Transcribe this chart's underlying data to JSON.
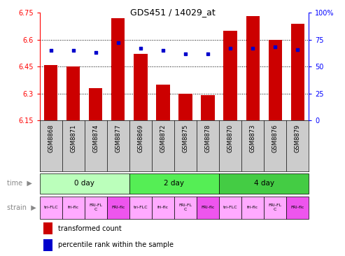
{
  "title": "GDS451 / 14029_at",
  "samples": [
    "GSM8868",
    "GSM8871",
    "GSM8874",
    "GSM8877",
    "GSM8869",
    "GSM8872",
    "GSM8875",
    "GSM8878",
    "GSM8870",
    "GSM8873",
    "GSM8876",
    "GSM8879"
  ],
  "transformed_count": [
    6.46,
    6.45,
    6.33,
    6.72,
    6.52,
    6.35,
    6.3,
    6.29,
    6.65,
    6.73,
    6.6,
    6.69
  ],
  "percentile_rank": [
    65,
    65,
    63,
    72,
    67,
    65,
    62,
    62,
    67,
    67,
    68,
    66
  ],
  "ylim_left": [
    6.15,
    6.75
  ],
  "ylim_right": [
    0,
    100
  ],
  "yticks_left": [
    6.15,
    6.3,
    6.45,
    6.6,
    6.75
  ],
  "yticks_right": [
    0,
    25,
    50,
    75,
    100
  ],
  "bar_color": "#cc0000",
  "dot_color": "#0000cc",
  "time_groups": [
    {
      "label": "0 day",
      "start": 0,
      "end": 3,
      "color": "#bbffbb"
    },
    {
      "label": "2 day",
      "start": 4,
      "end": 7,
      "color": "#55ee55"
    },
    {
      "label": "4 day",
      "start": 8,
      "end": 11,
      "color": "#44cc44"
    }
  ],
  "strain_labels": [
    "tri-FLC",
    "fri-flc",
    "FRI-FL\nC",
    "FRI-flc",
    "tri-FLC",
    "fri-flc",
    "FRI-FL\nC",
    "FRI-flc",
    "tri-FLC",
    "fri-flc",
    "FRI-FL\nC",
    "FRI-flc"
  ],
  "strain_colors": [
    "#ffaaff",
    "#ffaaff",
    "#ffaaff",
    "#ee55ee",
    "#ffaaff",
    "#ffaaff",
    "#ffaaff",
    "#ee55ee",
    "#ffaaff",
    "#ffaaff",
    "#ffaaff",
    "#ee55ee"
  ],
  "legend_bar_label": "transformed count",
  "legend_dot_label": "percentile rank within the sample",
  "bg_color": "#ffffff"
}
